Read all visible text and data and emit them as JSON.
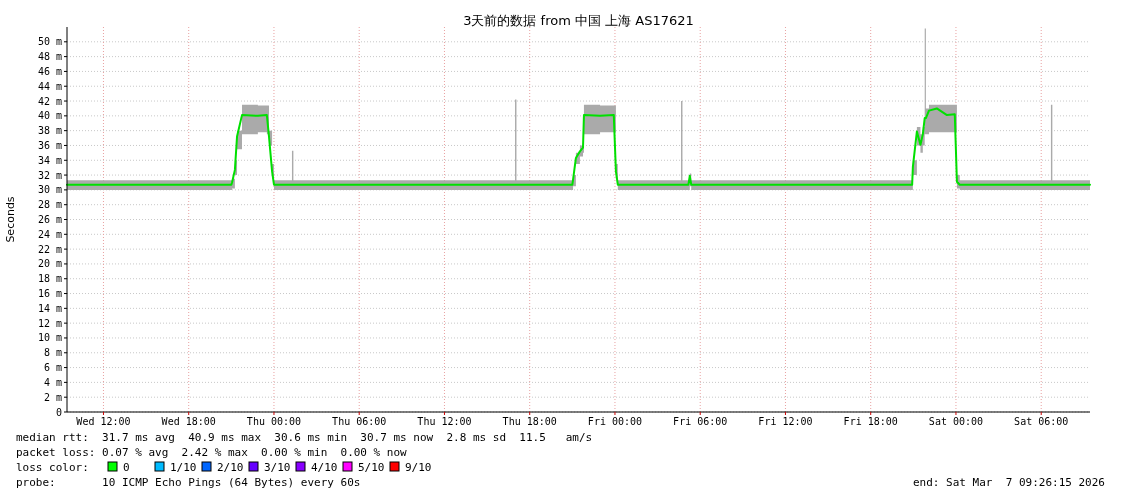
{
  "chart_data": {
    "type": "line",
    "title": "3天前的数据 from 中国 上海 AS17621",
    "ylabel": "Seconds",
    "xlim": [
      "2026-03-04T09:26",
      "2026-03-07T09:26"
    ],
    "xticks": [
      {
        "value": "2026-03-04T12:00",
        "label": "Wed 12:00"
      },
      {
        "value": "2026-03-04T18:00",
        "label": "Wed 18:00"
      },
      {
        "value": "2026-03-05T00:00",
        "label": "Thu 00:00"
      },
      {
        "value": "2026-03-05T06:00",
        "label": "Thu 06:00"
      },
      {
        "value": "2026-03-05T12:00",
        "label": "Thu 12:00"
      },
      {
        "value": "2026-03-05T18:00",
        "label": "Thu 18:00"
      },
      {
        "value": "2026-03-06T00:00",
        "label": "Fri 00:00"
      },
      {
        "value": "2026-03-06T06:00",
        "label": "Fri 06:00"
      },
      {
        "value": "2026-03-06T12:00",
        "label": "Fri 12:00"
      },
      {
        "value": "2026-03-06T18:00",
        "label": "Fri 18:00"
      },
      {
        "value": "2026-03-07T00:00",
        "label": "Sat 00:00"
      },
      {
        "value": "2026-03-07T06:00",
        "label": "Sat 06:00"
      }
    ],
    "ylim": [
      0,
      52
    ],
    "yticks": [
      0,
      {
        "value": 2,
        "label": "2 m"
      },
      {
        "value": 4,
        "label": "4 m"
      },
      {
        "value": 6,
        "label": "6 m"
      },
      {
        "value": 8,
        "label": "8 m"
      },
      {
        "value": 10,
        "label": "10 m"
      },
      {
        "value": 12,
        "label": "12 m"
      },
      {
        "value": 14,
        "label": "14 m"
      },
      {
        "value": 16,
        "label": "16 m"
      },
      {
        "value": 18,
        "label": "18 m"
      },
      {
        "value": 20,
        "label": "20 m"
      },
      {
        "value": 22,
        "label": "22 m"
      },
      {
        "value": 24,
        "label": "24 m"
      },
      {
        "value": 26,
        "label": "26 m"
      },
      {
        "value": 28,
        "label": "28 m"
      },
      {
        "value": 30,
        "label": "30 m"
      },
      {
        "value": 32,
        "label": "32 m"
      },
      {
        "value": 34,
        "label": "34 m"
      },
      {
        "value": 36,
        "label": "36 m"
      },
      {
        "value": 38,
        "label": "38 m"
      },
      {
        "value": 40,
        "label": "40 m"
      },
      {
        "value": 42,
        "label": "42 m"
      },
      {
        "value": 44,
        "label": "44 m"
      },
      {
        "value": 46,
        "label": "46 m"
      },
      {
        "value": 48,
        "label": "48 m"
      },
      {
        "value": 50,
        "label": "50 m"
      }
    ],
    "grid": true,
    "x": [
      "2026-03-04T09:26",
      "2026-03-04T21:00",
      "2026-03-04T21:03",
      "2026-03-04T21:15",
      "2026-03-04T21:24",
      "2026-03-04T21:45",
      "2026-03-04T22:52",
      "2026-03-04T23:30",
      "2026-03-04T23:39",
      "2026-03-04T23:52",
      "2026-03-05T00:00",
      "2026-03-05T01:10",
      "2026-03-05T01:16",
      "2026-03-05T01:22",
      "2026-03-05T16:52",
      "2026-03-05T16:58",
      "2026-03-05T17:04",
      "2026-03-05T21:00",
      "2026-03-05T21:03",
      "2026-03-05T21:15",
      "2026-03-05T21:32",
      "2026-03-05T21:45",
      "2026-03-05T21:49",
      "2026-03-05T22:57",
      "2026-03-05T23:55",
      "2026-03-06T00:04",
      "2026-03-06T00:12",
      "2026-03-06T04:33",
      "2026-03-06T04:39",
      "2026-03-06T04:45",
      "2026-03-06T05:10",
      "2026-03-06T05:16",
      "2026-03-06T05:22",
      "2026-03-06T20:55",
      "2026-03-06T20:58",
      "2026-03-06T21:15",
      "2026-03-06T21:30",
      "2026-03-06T21:40",
      "2026-03-06T21:48",
      "2026-03-06T21:53",
      "2026-03-06T22:06",
      "2026-03-06T22:39",
      "2026-03-06T23:22",
      "2026-03-06T23:55",
      "2026-03-07T00:04",
      "2026-03-07T00:16",
      "2026-03-07T06:35",
      "2026-03-07T06:41",
      "2026-03-07T06:47",
      "2026-03-07T09:26"
    ],
    "series": [
      {
        "color": "#00e000",
        "values": [
          30.7,
          30.7,
          31.0,
          32.7,
          37.2,
          40.1,
          40.0,
          40.1,
          37.2,
          32.5,
          30.7,
          30.7,
          30.7,
          30.7,
          30.7,
          30.7,
          30.7,
          30.7,
          31.4,
          34.3,
          35.2,
          35.7,
          40.1,
          40.0,
          40.1,
          32.5,
          30.7,
          30.7,
          30.7,
          30.7,
          30.7,
          31.9,
          30.7,
          30.7,
          33.1,
          37.9,
          36.1,
          37.5,
          39.7,
          39.7,
          40.7,
          41.0,
          40.1,
          40.2,
          31.1,
          30.7,
          30.7,
          30.7,
          30.7,
          30.7
        ],
        "lower": [
          30.0,
          30.0,
          30.2,
          32.0,
          35.5,
          37.5,
          37.8,
          37.5,
          36.0,
          31.5,
          30.0,
          30.0,
          30.0,
          30.0,
          30.0,
          30.0,
          30.0,
          30.0,
          30.5,
          33.5,
          34.5,
          35.0,
          37.5,
          37.8,
          37.8,
          31.5,
          30.0,
          30.0,
          30.0,
          30.0,
          30.0,
          30.5,
          30.0,
          30.0,
          32.0,
          36.0,
          35.0,
          36.0,
          37.5,
          37.5,
          37.8,
          37.8,
          37.8,
          37.8,
          30.2,
          30.0,
          30.0,
          30.0,
          30.0,
          30.0
        ],
        "upper": [
          31.3,
          31.3,
          31.5,
          34.0,
          38.0,
          41.5,
          41.4,
          41.4,
          38.0,
          33.5,
          31.3,
          31.3,
          35.3,
          31.3,
          31.3,
          42.2,
          31.3,
          31.3,
          32.0,
          35.0,
          36.0,
          36.5,
          41.5,
          41.4,
          41.4,
          33.5,
          31.3,
          31.3,
          42.0,
          31.3,
          31.3,
          32.2,
          31.3,
          31.3,
          34.0,
          38.5,
          37.5,
          38.5,
          51.8,
          41.0,
          41.5,
          41.5,
          41.5,
          41.5,
          32.0,
          31.3,
          31.3,
          41.5,
          31.3,
          31.3
        ]
      }
    ],
    "annotations": [
      "median rtt:  31.7 ms avg  40.9 ms max  30.6 ms min  30.7 ms now  2.8 ms sd  11.5   am/s",
      "packet loss: 0.07 % avg  2.42 % max  0.00 % min  0.00 % now",
      "loss color:",
      "0",
      "1/10",
      "2/10",
      "3/10",
      "4/10",
      "5/10",
      "9/10",
      "probe:       10 ICMP Echo Pings (64 Bytes) every 60s",
      "end: Sat Mar  7 09:26:15 2026"
    ]
  }
}
